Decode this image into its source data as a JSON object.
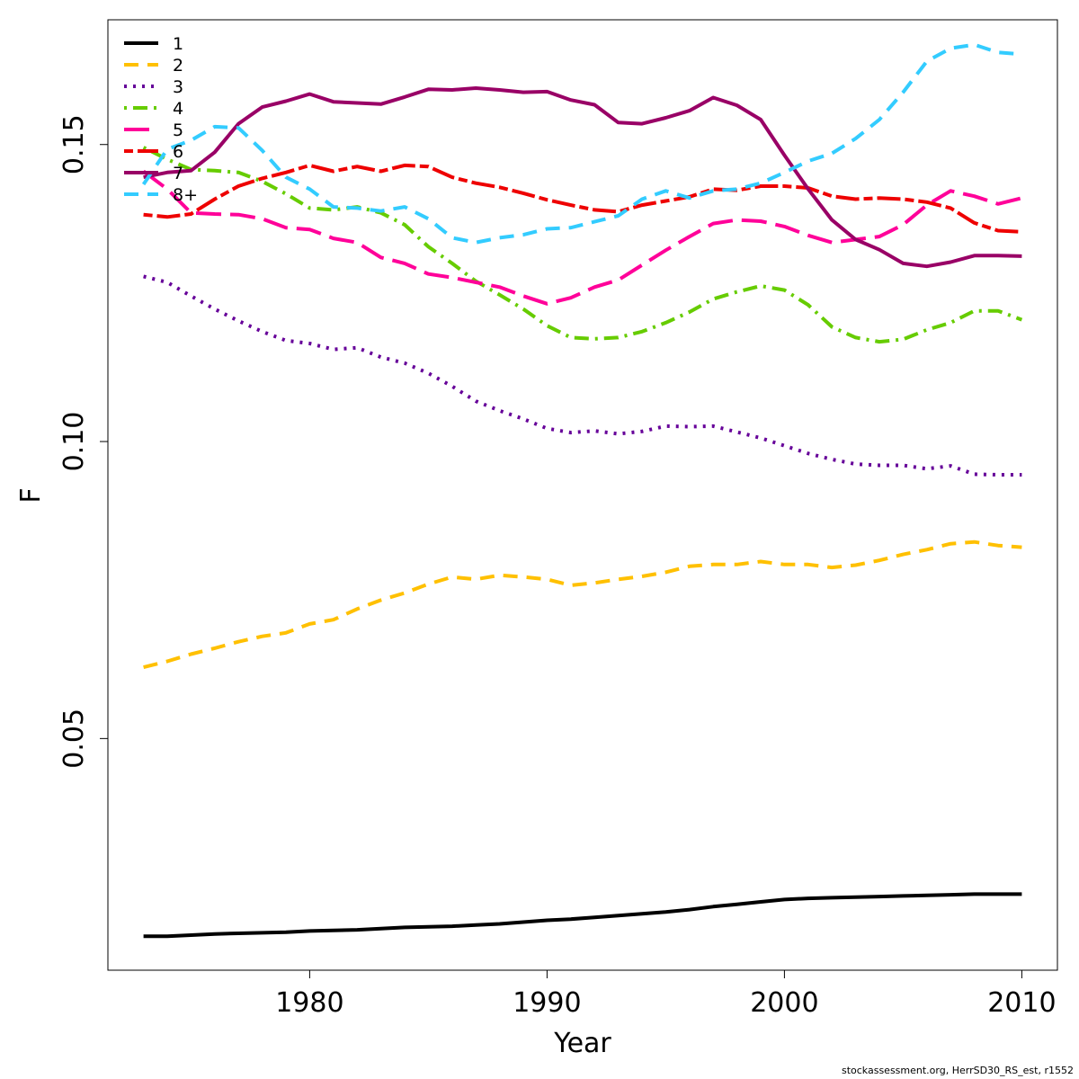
{
  "chart_data": {
    "type": "line",
    "xlabel": "Year",
    "ylabel": "F",
    "xlim": [
      1971.5,
      2011.5
    ],
    "ylim": [
      0.011,
      0.171
    ],
    "x_ticks": [
      1980,
      1990,
      2000,
      2010
    ],
    "y_ticks": [
      0.05,
      0.1,
      0.15
    ],
    "y_tick_labels": [
      "0.05",
      "0.10",
      "0.15"
    ],
    "grid": false,
    "legend_position": "top-left",
    "x": [
      1973,
      1974,
      1975,
      1976,
      1977,
      1978,
      1979,
      1980,
      1981,
      1982,
      1983,
      1984,
      1985,
      1986,
      1987,
      1988,
      1989,
      1990,
      1991,
      1992,
      1993,
      1994,
      1995,
      1996,
      1997,
      1998,
      1999,
      2000,
      2001,
      2002,
      2003,
      2004,
      2005,
      2006,
      2007,
      2008,
      2009,
      2010
    ],
    "series": [
      {
        "name": "1",
        "color": "#000000",
        "dash": "solid",
        "values": [
          0.0167,
          0.0167,
          0.0169,
          0.0171,
          0.0172,
          0.0173,
          0.0174,
          0.0176,
          0.0177,
          0.0178,
          0.018,
          0.0182,
          0.0183,
          0.0184,
          0.0186,
          0.0188,
          0.0191,
          0.0194,
          0.0196,
          0.0199,
          0.0202,
          0.0205,
          0.0208,
          0.0212,
          0.0217,
          0.0221,
          0.0225,
          0.0229,
          0.0231,
          0.0232,
          0.0233,
          0.0234,
          0.0235,
          0.0236,
          0.0237,
          0.0238,
          0.0238,
          0.0238
        ]
      },
      {
        "name": "2",
        "color": "#FFC000",
        "dash": "dashed",
        "values": [
          0.062,
          0.063,
          0.0642,
          0.0652,
          0.0663,
          0.0672,
          0.0678,
          0.0693,
          0.07,
          0.0718,
          0.0733,
          0.0745,
          0.076,
          0.0772,
          0.0768,
          0.0775,
          0.0772,
          0.0768,
          0.0758,
          0.0762,
          0.0768,
          0.0773,
          0.078,
          0.079,
          0.0793,
          0.0793,
          0.0798,
          0.0793,
          0.0793,
          0.0788,
          0.0792,
          0.08,
          0.081,
          0.0818,
          0.0828,
          0.0831,
          0.0825,
          0.0822
        ]
      },
      {
        "name": "3",
        "color": "#660099",
        "dash": "dotted",
        "values": [
          0.1278,
          0.1268,
          0.1245,
          0.1223,
          0.1203,
          0.1185,
          0.117,
          0.1165,
          0.1155,
          0.1158,
          0.1142,
          0.1132,
          0.1115,
          0.1093,
          0.1068,
          0.1052,
          0.1038,
          0.1022,
          0.1015,
          0.1018,
          0.1013,
          0.1017,
          0.1026,
          0.1025,
          0.1026,
          0.1016,
          0.1006,
          0.0993,
          0.098,
          0.097,
          0.0962,
          0.096,
          0.096,
          0.0954,
          0.0959,
          0.0945,
          0.0944,
          0.0944
        ]
      },
      {
        "name": "4",
        "color": "#66CC00",
        "dash": "dashdot",
        "values": [
          0.1495,
          0.1475,
          0.1458,
          0.1456,
          0.1453,
          0.1438,
          0.1417,
          0.1393,
          0.139,
          0.1395,
          0.1385,
          0.1365,
          0.1328,
          0.13,
          0.127,
          0.1247,
          0.1223,
          0.1195,
          0.1175,
          0.1173,
          0.1175,
          0.1185,
          0.12,
          0.1218,
          0.124,
          0.1252,
          0.1262,
          0.1255,
          0.123,
          0.1193,
          0.1175,
          0.1168,
          0.1172,
          0.1188,
          0.12,
          0.122,
          0.122,
          0.1205
        ]
      },
      {
        "name": "5",
        "color": "#FF0099",
        "dash": "longdash",
        "values": [
          0.1455,
          0.1425,
          0.1385,
          0.1383,
          0.1382,
          0.1375,
          0.136,
          0.1357,
          0.1342,
          0.1335,
          0.131,
          0.13,
          0.1282,
          0.1276,
          0.1268,
          0.126,
          0.1245,
          0.1232,
          0.1242,
          0.126,
          0.1272,
          0.1297,
          0.1322,
          0.1345,
          0.1367,
          0.1373,
          0.1371,
          0.1362,
          0.1347,
          0.1335,
          0.134,
          0.1345,
          0.1365,
          0.1398,
          0.1422,
          0.1413,
          0.14,
          0.141
        ]
      },
      {
        "name": "6",
        "color": "#EE0000",
        "dash": "twodash",
        "values": [
          0.1382,
          0.1378,
          0.1383,
          0.1408,
          0.143,
          0.1443,
          0.1453,
          0.1465,
          0.1455,
          0.1463,
          0.1455,
          0.1465,
          0.1463,
          0.1445,
          0.1435,
          0.1428,
          0.1418,
          0.1407,
          0.1398,
          0.139,
          0.1387,
          0.1398,
          0.1405,
          0.1412,
          0.1425,
          0.1423,
          0.143,
          0.143,
          0.1427,
          0.1413,
          0.1408,
          0.141,
          0.1408,
          0.1403,
          0.1393,
          0.1368,
          0.1355,
          0.1353
        ]
      },
      {
        "name": "7",
        "color": "#990066",
        "dash": "solid",
        "values": [
          0.1445,
          0.1453,
          0.1456,
          0.1487,
          0.1535,
          0.1563,
          0.1573,
          0.1585,
          0.1572,
          0.157,
          0.1568,
          0.158,
          0.1593,
          0.1592,
          0.1595,
          0.1592,
          0.1588,
          0.1589,
          0.1575,
          0.1567,
          0.1537,
          0.1535,
          0.1545,
          0.1557,
          0.1579,
          0.1566,
          0.1542,
          0.1482,
          0.1425,
          0.1373,
          0.134,
          0.1323,
          0.13,
          0.1295,
          0.1302,
          0.1313,
          0.1313,
          0.1312
        ]
      },
      {
        "name": "8+",
        "color": "#33CCFF",
        "dash": "dashed",
        "values": [
          0.1433,
          0.1492,
          0.1507,
          0.153,
          0.1528,
          0.149,
          0.1445,
          0.1425,
          0.1395,
          0.1393,
          0.1388,
          0.1395,
          0.1375,
          0.1343,
          0.1335,
          0.1343,
          0.1348,
          0.1358,
          0.136,
          0.137,
          0.138,
          0.1408,
          0.1422,
          0.141,
          0.1422,
          0.1425,
          0.1435,
          0.1453,
          0.1472,
          0.1485,
          0.151,
          0.1542,
          0.1588,
          0.164,
          0.1662,
          0.1668,
          0.1655,
          0.1652
        ]
      }
    ]
  },
  "credit": "stockassessment.org, HerrSD30_RS_est, r1552"
}
